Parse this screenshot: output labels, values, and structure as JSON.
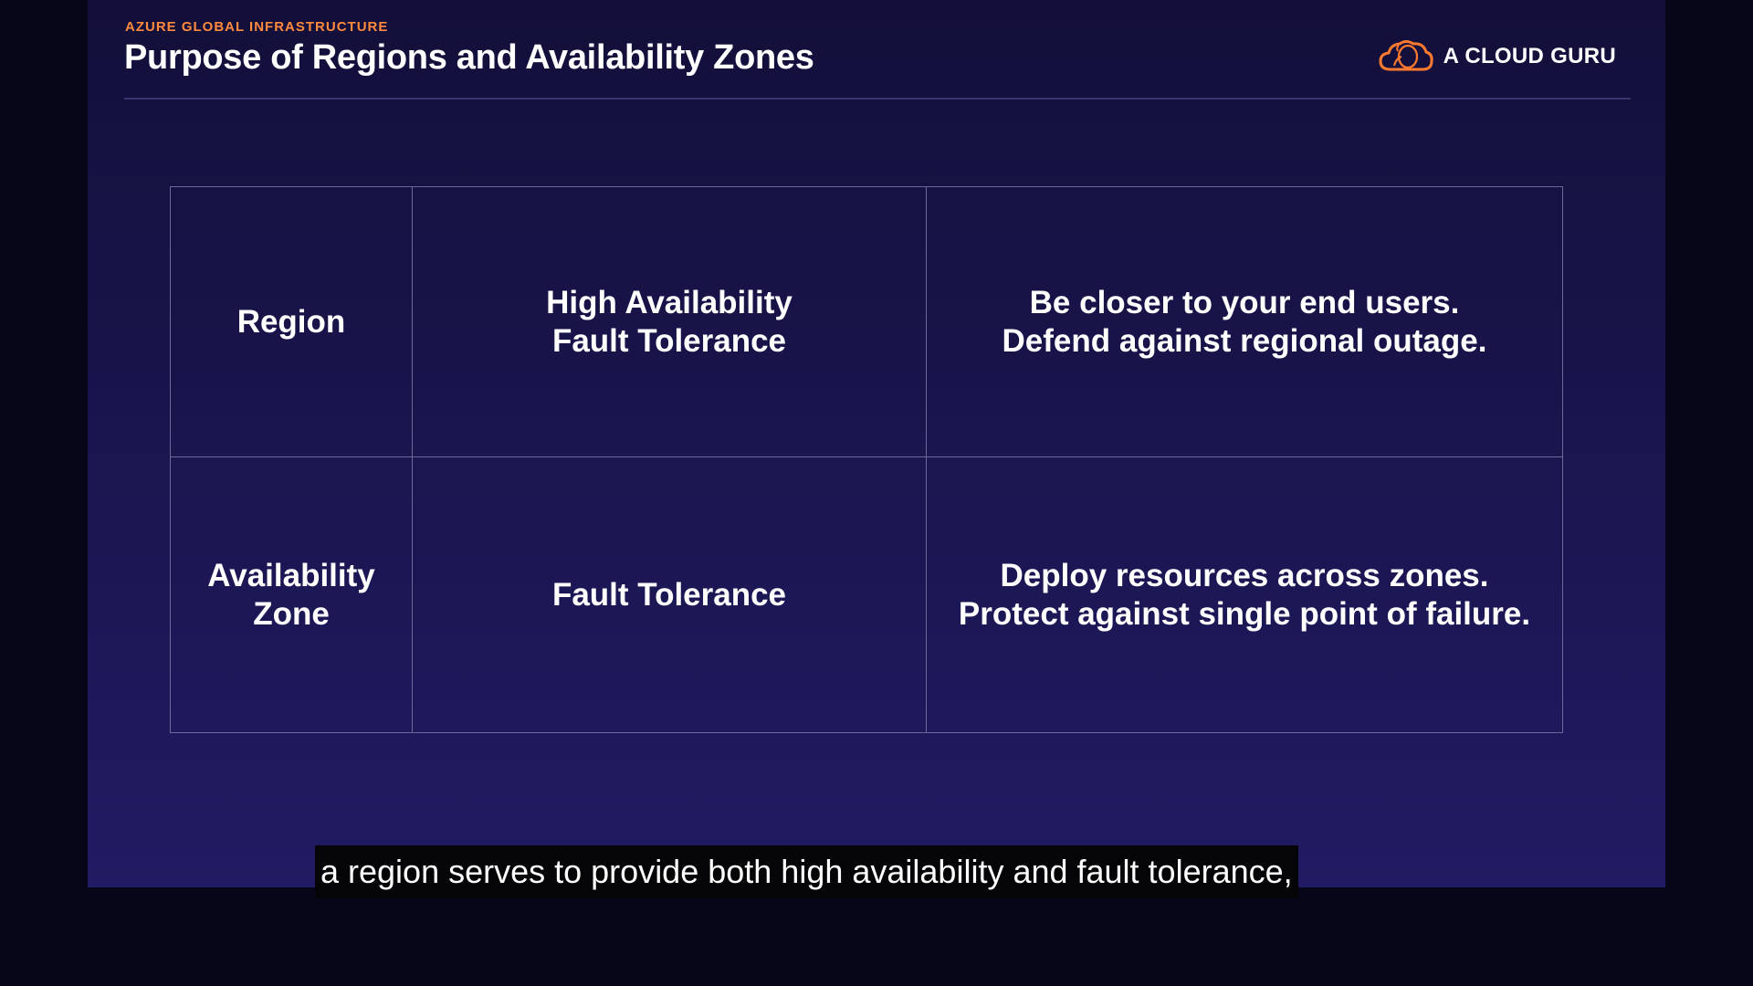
{
  "slide": {
    "eyebrow": "AZURE GLOBAL INFRASTRUCTURE",
    "title": "Purpose of Regions and Availability Zones",
    "logo_text": "A CLOUD GURU",
    "logo_icon": "cloud-icon",
    "accent_color": "#ff8a3d"
  },
  "table": {
    "rows": [
      {
        "name": "Region",
        "purpose": "High Availability\nFault Tolerance",
        "description": "Be closer to your end users.\nDefend against regional outage."
      },
      {
        "name": "Availability\nZone",
        "purpose": "Fault  Tolerance",
        "description": "Deploy resources across zones.\nProtect against single point of failure."
      }
    ]
  },
  "caption": {
    "text": "a region serves to provide both high availability and fault tolerance,"
  }
}
